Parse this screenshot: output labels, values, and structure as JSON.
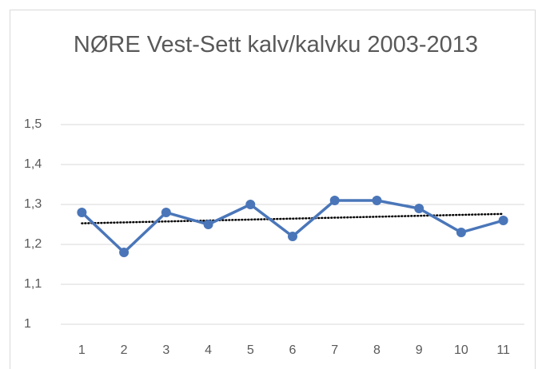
{
  "chart_data": {
    "type": "line",
    "title": "NØRE Vest-Sett kalv/kalvku 2003-2013",
    "categories": [
      1,
      2,
      3,
      4,
      5,
      6,
      7,
      8,
      9,
      10,
      11
    ],
    "values": [
      1.28,
      1.18,
      1.28,
      1.25,
      1.3,
      1.22,
      1.31,
      1.31,
      1.29,
      1.23,
      1.26
    ],
    "color": "#4a76b9",
    "markers": true,
    "trendline": "linear",
    "trendline_color": "#000000",
    "ylim": [
      1,
      1.5
    ],
    "yticks": [
      1,
      {
        "value": 1.1,
        "label": "1,1"
      },
      {
        "value": 1.2,
        "label": "1,2"
      },
      {
        "value": 1.3,
        "label": "1,3"
      },
      {
        "value": 1.4,
        "label": "1,4"
      },
      {
        "value": 1.5,
        "label": "1,5"
      }
    ],
    "grid": true
  }
}
